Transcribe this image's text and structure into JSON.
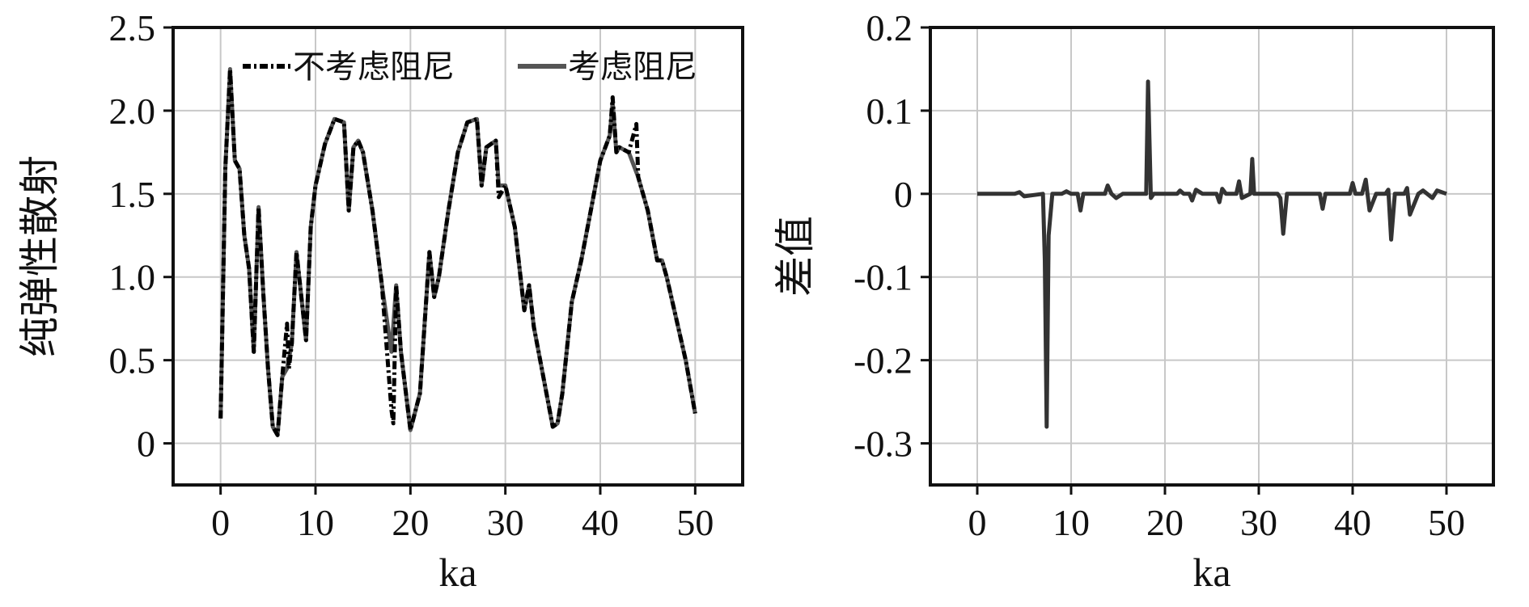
{
  "chart_data": [
    {
      "type": "line",
      "xlabel": "ka",
      "ylabel": "纯弹性散射",
      "xlim": [
        -5,
        55
      ],
      "ylim": [
        -0.25,
        2.5
      ],
      "xticks": [
        0,
        10,
        20,
        30,
        40,
        50
      ],
      "xtick_labels": [
        "0",
        "10",
        "20",
        "30",
        "40",
        "50"
      ],
      "yticks": [
        0,
        0.5,
        1.0,
        1.5,
        2.0,
        2.5
      ],
      "ytick_labels": [
        "0",
        "0.5",
        "1.0",
        "1.5",
        "2.0",
        "2.5"
      ],
      "grid": true,
      "legend_position": "top-right",
      "series": [
        {
          "name": "不考虑阻尼",
          "style": "dash-dot",
          "color": "#000000",
          "x": [
            0,
            0.5,
            1.0,
            1.5,
            2.0,
            2.5,
            3.0,
            3.5,
            4.0,
            4.5,
            5.0,
            5.5,
            6.0,
            6.5,
            7.0,
            7.2,
            7.5,
            8.0,
            9.0,
            9.5,
            10.0,
            11.0,
            12.0,
            13.0,
            13.5,
            14.0,
            14.5,
            15.0,
            16.0,
            17.0,
            18.0,
            18.2,
            18.5,
            19.0,
            20.0,
            21.0,
            22.0,
            22.5,
            23.0,
            24.0,
            25.0,
            26.0,
            27.0,
            27.5,
            28.0,
            29.0,
            29.3,
            30.0,
            31.0,
            32.0,
            32.5,
            33.0,
            34.0,
            35.0,
            35.5,
            36.0,
            37.0,
            38.0,
            39.0,
            40.0,
            41.0,
            41.3,
            41.7,
            42.0,
            43.0,
            43.8,
            44.0,
            45.0,
            46.0,
            46.5,
            47.0,
            48.0,
            49.0,
            50.0
          ],
          "y": [
            0.15,
            1.65,
            2.25,
            1.7,
            1.65,
            1.25,
            1.05,
            0.55,
            1.42,
            0.9,
            0.45,
            0.1,
            0.05,
            0.4,
            0.72,
            0.45,
            0.6,
            1.15,
            0.62,
            1.3,
            1.55,
            1.8,
            1.95,
            1.93,
            1.4,
            1.78,
            1.82,
            1.75,
            1.4,
            0.95,
            0.2,
            0.12,
            0.95,
            0.55,
            0.08,
            0.3,
            1.15,
            0.88,
            1.0,
            1.4,
            1.75,
            1.93,
            1.95,
            1.55,
            1.78,
            1.82,
            1.48,
            1.55,
            1.3,
            0.8,
            0.95,
            0.7,
            0.4,
            0.1,
            0.12,
            0.3,
            0.85,
            1.1,
            1.4,
            1.7,
            1.85,
            2.08,
            1.75,
            1.78,
            1.75,
            1.92,
            1.6,
            1.4,
            1.1,
            1.1,
            1.0,
            0.75,
            0.5,
            0.18
          ]
        },
        {
          "name": "考虑阻尼",
          "style": "solid",
          "color": "#555555",
          "x": [
            0,
            0.5,
            1.0,
            1.5,
            2.0,
            2.5,
            3.0,
            3.5,
            4.0,
            4.5,
            5.0,
            5.5,
            6.0,
            6.5,
            7.0,
            7.5,
            8.0,
            9.0,
            9.5,
            10.0,
            11.0,
            12.0,
            13.0,
            13.5,
            14.0,
            14.5,
            15.0,
            16.0,
            17.0,
            18.0,
            18.5,
            19.0,
            20.0,
            21.0,
            22.0,
            22.5,
            23.0,
            24.0,
            25.0,
            26.0,
            27.0,
            27.5,
            28.0,
            29.0,
            29.3,
            30.0,
            31.0,
            32.0,
            32.5,
            33.0,
            34.0,
            35.0,
            35.5,
            36.0,
            37.0,
            38.0,
            39.0,
            40.0,
            41.0,
            41.3,
            41.7,
            42.0,
            43.0,
            44.0,
            45.0,
            46.0,
            46.5,
            47.0,
            48.0,
            49.0,
            50.0
          ],
          "y": [
            0.15,
            1.65,
            2.25,
            1.7,
            1.65,
            1.25,
            1.05,
            0.55,
            1.42,
            0.9,
            0.45,
            0.1,
            0.05,
            0.4,
            0.45,
            0.6,
            1.15,
            0.62,
            1.3,
            1.55,
            1.8,
            1.95,
            1.93,
            1.4,
            1.78,
            1.82,
            1.75,
            1.4,
            0.95,
            0.55,
            0.95,
            0.55,
            0.08,
            0.3,
            1.15,
            0.88,
            1.0,
            1.4,
            1.75,
            1.93,
            1.95,
            1.55,
            1.78,
            1.82,
            1.55,
            1.55,
            1.3,
            0.8,
            0.95,
            0.7,
            0.4,
            0.1,
            0.12,
            0.3,
            0.85,
            1.1,
            1.4,
            1.7,
            1.85,
            2.05,
            1.75,
            1.78,
            1.75,
            1.6,
            1.4,
            1.1,
            1.1,
            1.0,
            0.75,
            0.5,
            0.18
          ]
        }
      ]
    },
    {
      "type": "line",
      "xlabel": "ka",
      "ylabel": "差值",
      "xlim": [
        -5,
        55
      ],
      "ylim": [
        -0.35,
        0.2
      ],
      "xticks": [
        0,
        10,
        20,
        30,
        40,
        50
      ],
      "xtick_labels": [
        "0",
        "10",
        "20",
        "30",
        "40",
        "50"
      ],
      "yticks": [
        -0.3,
        -0.2,
        -0.1,
        0,
        0.1,
        0.2
      ],
      "ytick_labels": [
        "-0.3",
        "-0.2",
        "-0.1",
        "0",
        "0.1",
        "0.2"
      ],
      "grid": true,
      "series": [
        {
          "color": "#333333",
          "x": [
            0,
            4.0,
            4.5,
            5.0,
            7.0,
            7.2,
            7.4,
            7.6,
            8.0,
            9.0,
            9.5,
            10.0,
            10.7,
            11.0,
            11.3,
            12.0,
            13.6,
            13.9,
            14.3,
            14.8,
            15.5,
            18.0,
            18.2,
            18.5,
            18.8,
            19.5,
            20.5,
            21.3,
            21.6,
            22.0,
            22.6,
            22.9,
            23.3,
            24.0,
            25.5,
            25.8,
            26.1,
            26.5,
            27.6,
            27.9,
            28.2,
            29.1,
            29.3,
            29.5,
            30.5,
            32.0,
            32.3,
            32.6,
            33.0,
            33.5,
            36.5,
            36.8,
            37.1,
            39.7,
            40.0,
            40.3,
            41.0,
            41.4,
            41.8,
            42.5,
            43.5,
            43.8,
            44.1,
            44.5,
            45.5,
            45.8,
            46.1,
            47.0,
            47.5,
            48.5,
            49.0,
            50.0
          ],
          "y": [
            0,
            0,
            0.002,
            -0.003,
            0,
            -0.08,
            -0.28,
            -0.05,
            0,
            0,
            0.003,
            0,
            0,
            -0.02,
            0,
            0,
            0,
            0.01,
            0,
            -0.005,
            0,
            0,
            0.135,
            -0.005,
            0,
            0,
            0,
            0,
            0.004,
            0,
            0,
            -0.008,
            0.005,
            0,
            0,
            -0.01,
            0.006,
            0,
            0,
            0.015,
            -0.005,
            0,
            0.042,
            0,
            0,
            0,
            -0.005,
            -0.048,
            0,
            0,
            0,
            -0.018,
            0,
            0,
            0.013,
            0,
            0,
            0.017,
            -0.02,
            0,
            0,
            0.005,
            -0.055,
            0,
            0,
            0.007,
            -0.025,
            0,
            0.004,
            -0.005,
            0.004,
            0
          ]
        }
      ]
    }
  ]
}
